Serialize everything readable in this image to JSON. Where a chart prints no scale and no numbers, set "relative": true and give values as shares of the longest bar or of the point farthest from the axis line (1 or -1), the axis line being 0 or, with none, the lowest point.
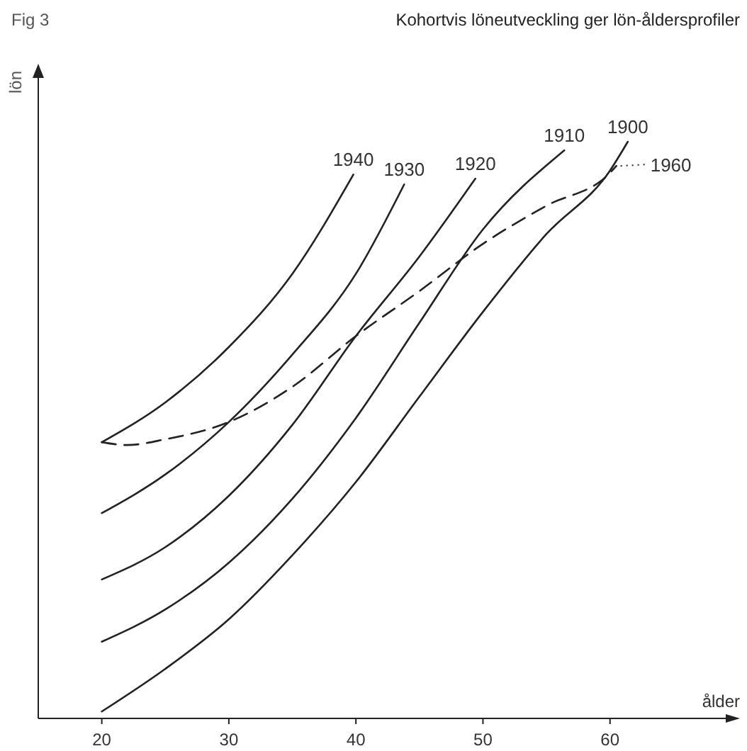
{
  "chart_data": {
    "type": "line",
    "title": "Kohortvis löneutveckling ger lön-åldersprofiler",
    "xlabel": "ålder",
    "ylabel": "lön",
    "annotations": [
      "Fig 3"
    ],
    "relative": true,
    "xlim": [
      15,
      70
    ],
    "xticks": [
      20,
      30,
      40,
      50,
      60
    ],
    "series": [
      {
        "name": "1940",
        "color": "#222222",
        "x": [
          20,
          25,
          30,
          35,
          39.8
        ],
        "values": [
          0.479,
          0.548,
          0.644,
          0.771,
          0.943
        ]
      },
      {
        "name": "1930",
        "color": "#222222",
        "x": [
          20,
          25,
          30,
          35,
          40,
          43.8
        ],
        "values": [
          0.356,
          0.423,
          0.514,
          0.631,
          0.771,
          0.926
        ]
      },
      {
        "name": "1920",
        "color": "#222222",
        "x": [
          20,
          25,
          30,
          35,
          40,
          45,
          49.4
        ],
        "values": [
          0.241,
          0.297,
          0.386,
          0.509,
          0.663,
          0.801,
          0.936
        ]
      },
      {
        "name": "1910",
        "color": "#222222",
        "x": [
          20,
          25,
          30,
          35,
          40,
          45,
          50,
          56.4
        ],
        "values": [
          0.133,
          0.189,
          0.27,
          0.381,
          0.521,
          0.686,
          0.848,
          0.985
        ]
      },
      {
        "name": "1900",
        "color": "#222222",
        "x": [
          20,
          25,
          30,
          35,
          40,
          45,
          50,
          55,
          60,
          61.4
        ],
        "values": [
          0.012,
          0.086,
          0.172,
          0.283,
          0.41,
          0.558,
          0.705,
          0.84,
          0.95,
          1
        ]
      },
      {
        "name": "1960",
        "color": "#222222",
        "line_style": "dashed",
        "x": [
          20,
          22,
          25,
          30,
          35,
          40,
          45,
          50,
          55,
          60,
          60.5
        ],
        "values": [
          0.479,
          0.474,
          0.484,
          0.514,
          0.575,
          0.663,
          0.741,
          0.823,
          0.889,
          0.946,
          0.958
        ]
      }
    ]
  }
}
